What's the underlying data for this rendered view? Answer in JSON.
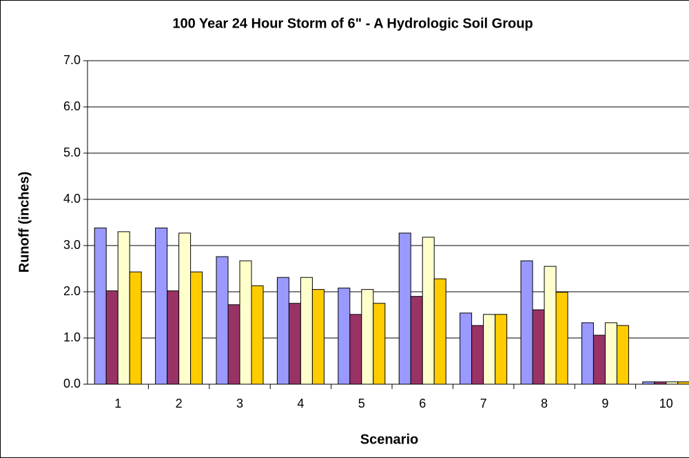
{
  "chart_data": {
    "type": "bar",
    "title": "100 Year 24 Hour Storm of 6\" - A Hydrologic Soil Group",
    "x_label": "Scenario",
    "y_label": "Runoff (inches)",
    "categories": [
      "1",
      "2",
      "3",
      "4",
      "5",
      "6",
      "7",
      "8",
      "9",
      "10"
    ],
    "series": [
      {
        "color": "#9999ff",
        "values": [
          3.38,
          3.38,
          2.76,
          2.31,
          2.08,
          3.27,
          1.54,
          2.67,
          1.33,
          0.05
        ]
      },
      {
        "color": "#993366",
        "values": [
          2.02,
          2.02,
          1.72,
          1.75,
          1.51,
          1.9,
          1.27,
          1.61,
          1.06,
          0.05
        ]
      },
      {
        "color": "#ffffcc",
        "values": [
          3.3,
          3.27,
          2.67,
          2.31,
          2.05,
          3.18,
          1.51,
          2.55,
          1.33,
          0.05
        ]
      },
      {
        "color": "#ffcc00",
        "values": [
          2.43,
          2.43,
          2.13,
          2.05,
          1.75,
          2.28,
          1.51,
          1.99,
          1.27,
          0.05
        ]
      }
    ],
    "ylim": [
      0,
      7
    ],
    "yticks": [
      {
        "value": 0,
        "label": "0.0"
      },
      {
        "value": 1,
        "label": "1.0"
      },
      {
        "value": 2,
        "label": "2.0"
      },
      {
        "value": 3,
        "label": "3.0"
      },
      {
        "value": 4,
        "label": "4.0"
      },
      {
        "value": 5,
        "label": "5.0"
      },
      {
        "value": 6,
        "label": "6.0"
      },
      {
        "value": 7,
        "label": "7.0"
      }
    ],
    "grid": true
  }
}
